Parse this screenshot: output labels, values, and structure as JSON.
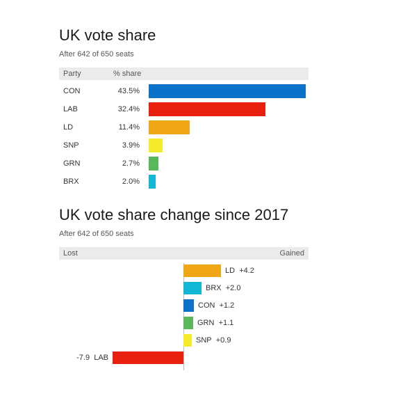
{
  "chart_data": [
    {
      "type": "bar",
      "title": "UK vote share",
      "subtitle": "After 642 of 650 seats",
      "column_headers": [
        "Party",
        "% share"
      ],
      "categories": [
        "CON",
        "LAB",
        "LD",
        "SNP",
        "GRN",
        "BRX"
      ],
      "value_labels": [
        "43.5%",
        "32.4%",
        "11.4%",
        "3.9%",
        "2.7%",
        "2.0%"
      ],
      "values": [
        43.5,
        32.4,
        11.4,
        3.9,
        2.7,
        2.0
      ],
      "colors": [
        "#0a73c9",
        "#e8210f",
        "#efa718",
        "#f6ea2c",
        "#5ab85c",
        "#13b6d4"
      ],
      "orientation": "horizontal",
      "grid": false
    },
    {
      "type": "bar",
      "title": "UK vote share change since 2017",
      "subtitle": "After 642 of 650 seats",
      "axis_labels": {
        "left": "Lost",
        "right": "Gained"
      },
      "categories": [
        "LD",
        "BRX",
        "CON",
        "GRN",
        "SNP",
        "LAB"
      ],
      "value_labels": [
        "+4.2",
        "+2.0",
        "+1.2",
        "+1.1",
        "+0.9",
        "-7.9"
      ],
      "values": [
        4.2,
        2.0,
        1.2,
        1.1,
        0.9,
        -7.9
      ],
      "colors": [
        "#efa718",
        "#13b6d4",
        "#0a73c9",
        "#5ab85c",
        "#f6ea2c",
        "#e8210f"
      ],
      "orientation": "horizontal",
      "diverging": true,
      "grid": false
    }
  ]
}
